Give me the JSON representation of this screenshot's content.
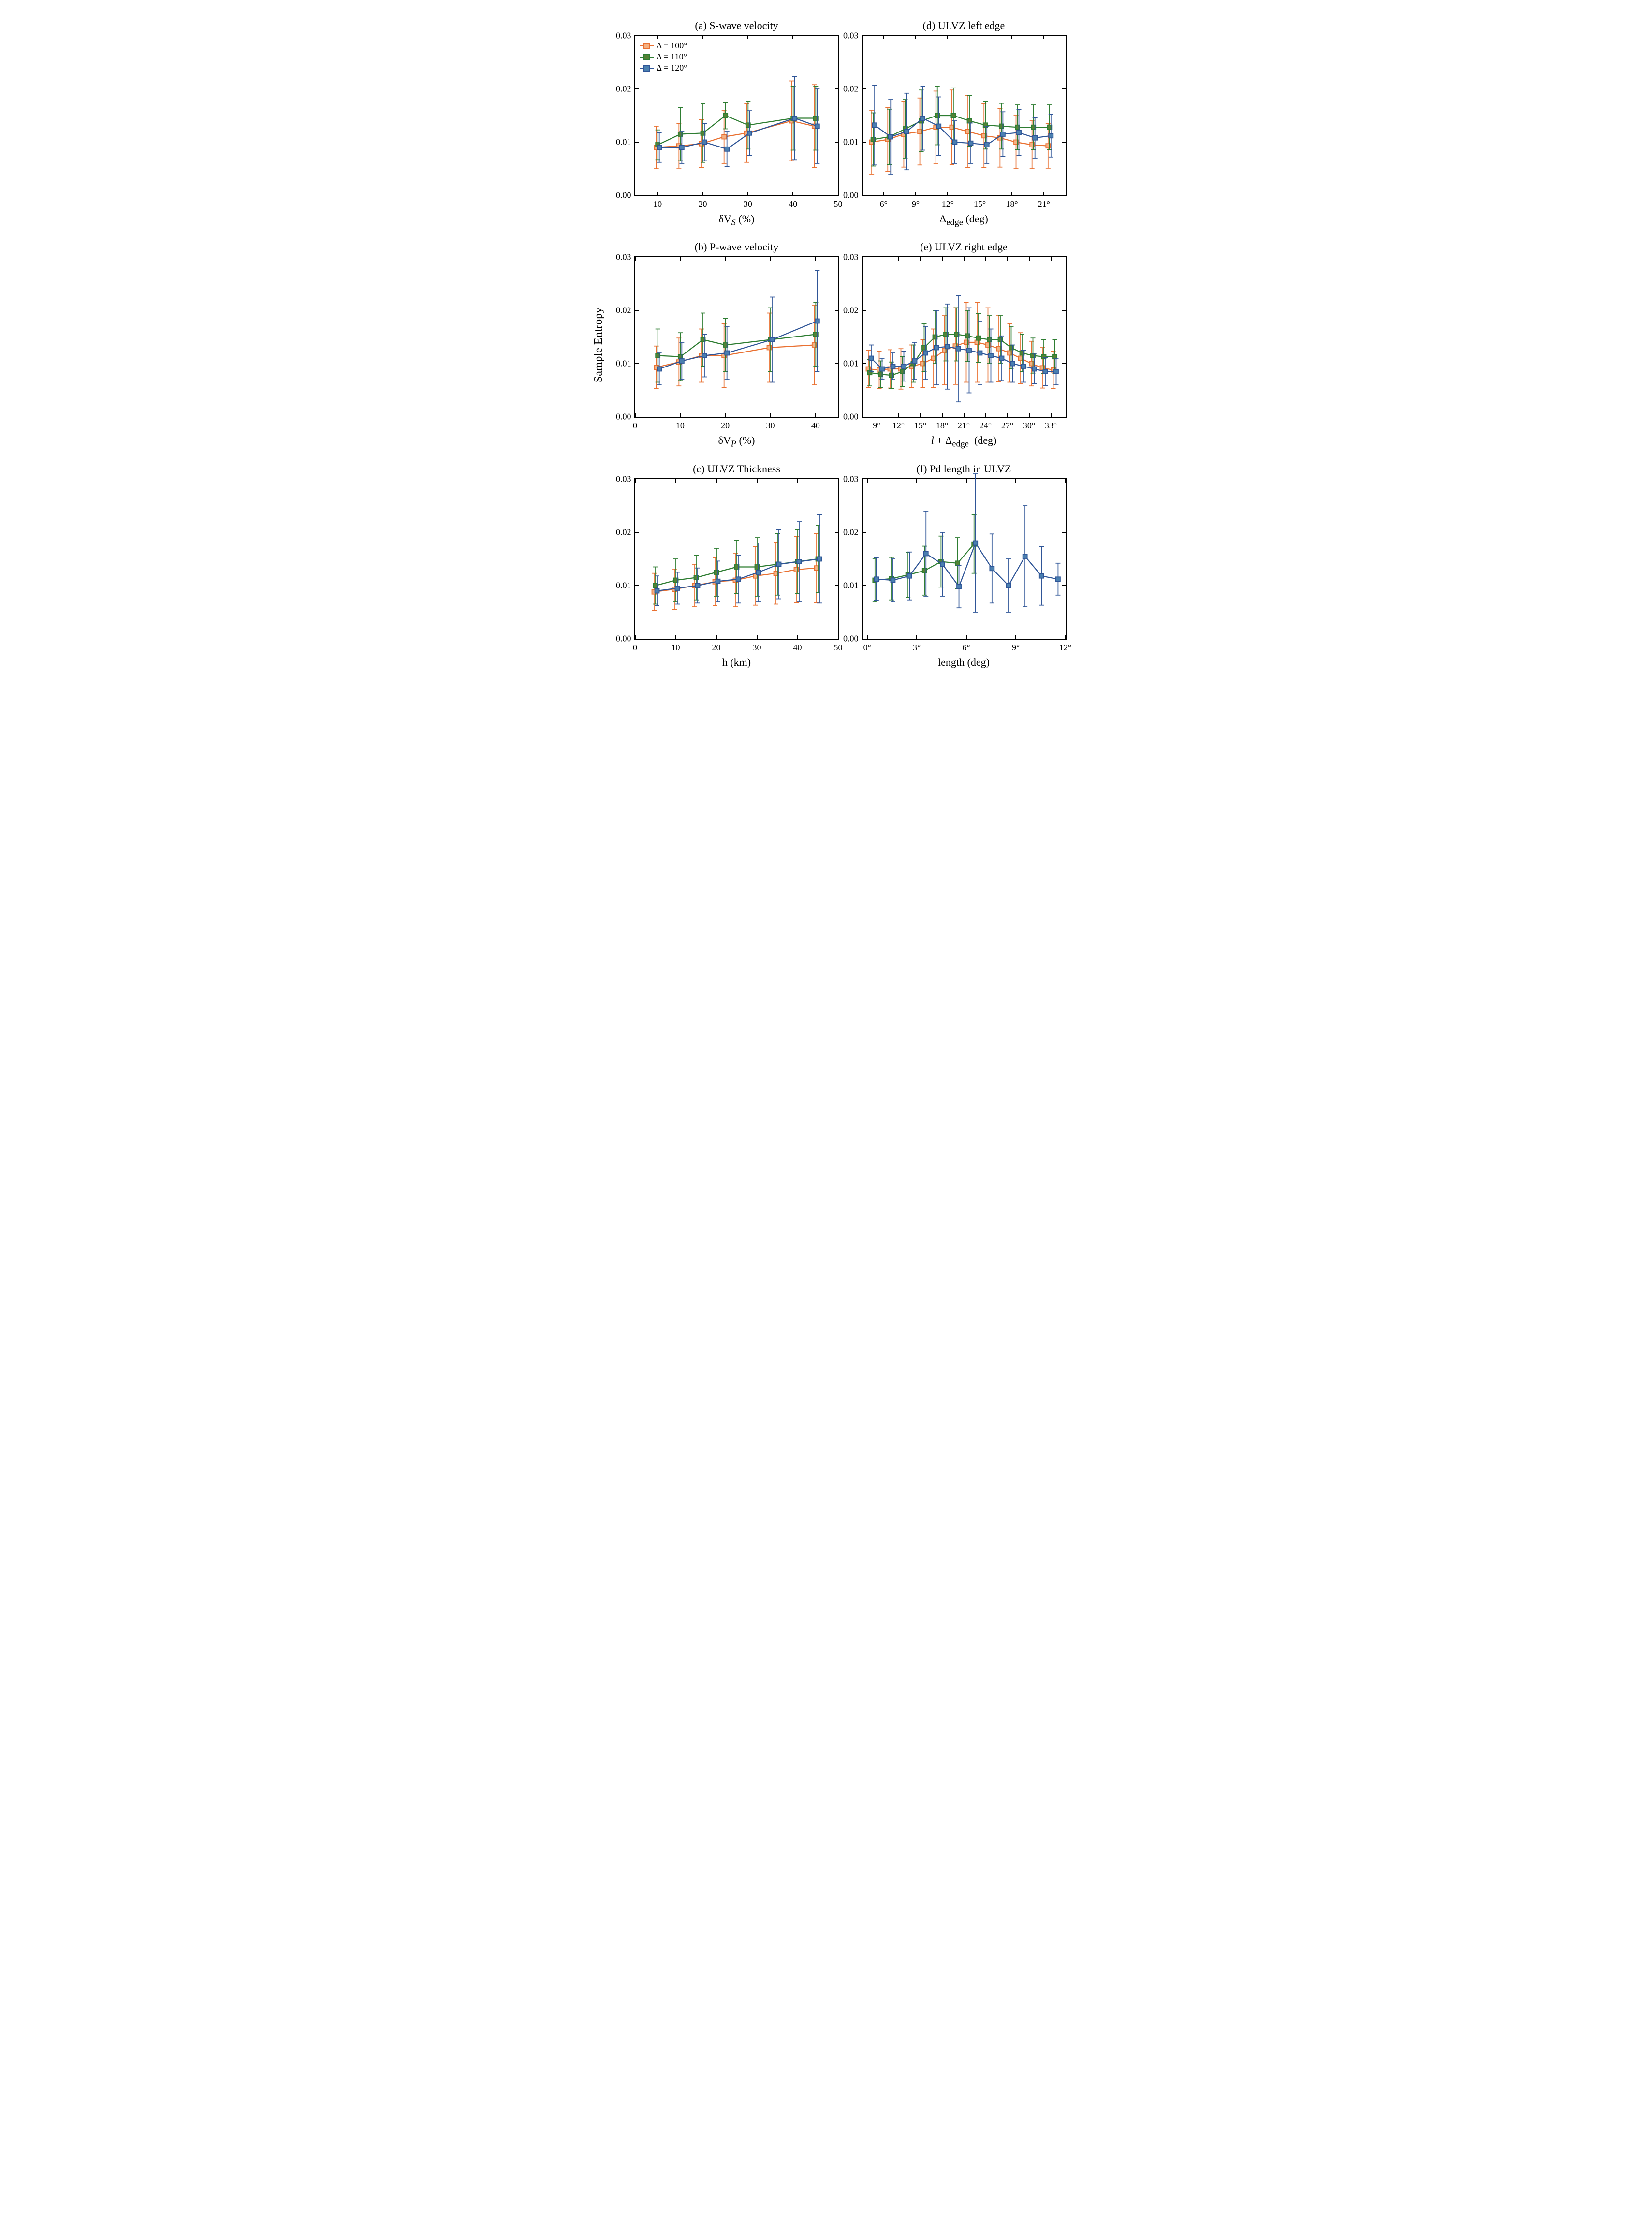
{
  "global_ylabel": "Sample Entropy",
  "colors": {
    "d100": {
      "stroke": "#e97132",
      "fill": "#f4b183"
    },
    "d110": {
      "stroke": "#2e7d32",
      "fill": "#548235"
    },
    "d120": {
      "stroke": "#2f5597",
      "fill": "#4a7fb0"
    }
  },
  "legend": {
    "items": [
      {
        "key": "d100",
        "label": "Δ = 100°"
      },
      {
        "key": "d110",
        "label": "Δ = 110°"
      },
      {
        "key": "d120",
        "label": "Δ = 120°"
      }
    ]
  },
  "style": {
    "marker_size": 9,
    "line_width": 2.2,
    "error_cap": 10,
    "title_fontsize": 22,
    "tick_fontsize": 18
  },
  "panels": [
    {
      "id": "a",
      "grid_col": 2,
      "grid_row": 1,
      "title": "(a) S-wave velocity",
      "xlabel": "δV_S (%)",
      "xlabel_html": "&delta;V<sub><i>S</i></sub> (%)",
      "ylim": [
        0,
        0.03
      ],
      "yticks": [
        0.0,
        0.01,
        0.02,
        0.03
      ],
      "xlim": [
        5,
        50
      ],
      "xticks": [
        10,
        20,
        30,
        40,
        50
      ],
      "xtick_labels": [
        "10",
        "20",
        "30",
        "40",
        "50"
      ],
      "show_legend": true,
      "series": [
        {
          "color": "d100",
          "x": [
            10,
            15,
            20,
            25,
            30,
            40,
            45
          ],
          "y": [
            0.009,
            0.0093,
            0.0097,
            0.011,
            0.0117,
            0.014,
            0.013
          ],
          "err": [
            0.004,
            0.0042,
            0.0045,
            0.005,
            0.0055,
            0.0075,
            0.0078
          ]
        },
        {
          "color": "d110",
          "x": [
            10,
            15,
            20,
            25,
            30,
            40,
            45
          ],
          "y": [
            0.0095,
            0.0115,
            0.0117,
            0.015,
            0.0132,
            0.0145,
            0.0145
          ],
          "err": [
            0.0028,
            0.005,
            0.0055,
            0.0025,
            0.0045,
            0.006,
            0.006
          ]
        },
        {
          "color": "d120",
          "x": [
            10,
            15,
            20,
            25,
            30,
            40,
            45
          ],
          "y": [
            0.009,
            0.009,
            0.01,
            0.0087,
            0.0117,
            0.0145,
            0.013
          ],
          "err": [
            0.0028,
            0.003,
            0.0035,
            0.0033,
            0.0042,
            0.0078,
            0.007
          ]
        }
      ]
    },
    {
      "id": "b",
      "grid_col": 2,
      "grid_row": 2,
      "title": "(b) P-wave velocity",
      "xlabel_html": "&delta;V<sub><i>P</i></sub> (%)",
      "ylim": [
        0,
        0.03
      ],
      "yticks": [
        0.0,
        0.01,
        0.02,
        0.03
      ],
      "xlim": [
        0,
        45
      ],
      "xticks": [
        0,
        10,
        20,
        30,
        40
      ],
      "xtick_labels": [
        "0",
        "10",
        "20",
        "30",
        "40"
      ],
      "series": [
        {
          "color": "d100",
          "x": [
            5,
            10,
            15,
            20,
            30,
            40
          ],
          "y": [
            0.0093,
            0.0103,
            0.0115,
            0.0115,
            0.013,
            0.0135
          ],
          "err": [
            0.004,
            0.0045,
            0.005,
            0.006,
            0.0065,
            0.0075
          ]
        },
        {
          "color": "d110",
          "x": [
            5,
            10,
            15,
            20,
            30,
            40
          ],
          "y": [
            0.0115,
            0.0113,
            0.0145,
            0.0135,
            0.0145,
            0.0155
          ],
          "err": [
            0.005,
            0.0045,
            0.005,
            0.005,
            0.006,
            0.006
          ]
        },
        {
          "color": "d120",
          "x": [
            5,
            10,
            15,
            20,
            30,
            40
          ],
          "y": [
            0.009,
            0.0105,
            0.0115,
            0.012,
            0.0145,
            0.018
          ],
          "err": [
            0.003,
            0.0035,
            0.004,
            0.005,
            0.008,
            0.0095
          ]
        }
      ]
    },
    {
      "id": "c",
      "grid_col": 2,
      "grid_row": 3,
      "title": "(c) ULVZ Thickness",
      "xlabel_html": "h (km)",
      "ylim": [
        0,
        0.03
      ],
      "yticks": [
        0.0,
        0.01,
        0.02,
        0.03
      ],
      "xlim": [
        0,
        50
      ],
      "xticks": [
        0,
        10,
        20,
        30,
        40,
        50
      ],
      "xtick_labels": [
        "0",
        "10",
        "20",
        "30",
        "40",
        "50"
      ],
      "series": [
        {
          "color": "d100",
          "x": [
            5,
            10,
            15,
            20,
            25,
            30,
            35,
            40,
            45
          ],
          "y": [
            0.0088,
            0.0093,
            0.01,
            0.0107,
            0.011,
            0.0118,
            0.0123,
            0.013,
            0.0133
          ],
          "err": [
            0.0035,
            0.0038,
            0.004,
            0.0045,
            0.005,
            0.0055,
            0.0058,
            0.0062,
            0.0065
          ]
        },
        {
          "color": "d110",
          "x": [
            5,
            10,
            15,
            20,
            25,
            30,
            35,
            40,
            45
          ],
          "y": [
            0.01,
            0.011,
            0.0115,
            0.0125,
            0.0135,
            0.0135,
            0.014,
            0.0145,
            0.015
          ],
          "err": [
            0.0035,
            0.004,
            0.0042,
            0.0045,
            0.005,
            0.0055,
            0.0058,
            0.006,
            0.0063
          ]
        },
        {
          "color": "d120",
          "x": [
            5,
            10,
            15,
            20,
            25,
            30,
            35,
            40,
            45
          ],
          "y": [
            0.009,
            0.0095,
            0.01,
            0.0108,
            0.0112,
            0.0125,
            0.014,
            0.0145,
            0.015
          ],
          "err": [
            0.0028,
            0.003,
            0.0033,
            0.0038,
            0.0045,
            0.0055,
            0.0065,
            0.0075,
            0.0083
          ]
        }
      ]
    },
    {
      "id": "d",
      "grid_col": 3,
      "grid_row": 1,
      "title": "(d) ULVZ left edge",
      "xlabel_html": "&Delta;<sub>edge</sub> (deg)",
      "ylim": [
        0,
        0.03
      ],
      "yticks": [
        0.0,
        0.01,
        0.02,
        0.03
      ],
      "xlim": [
        4,
        23
      ],
      "xticks": [
        6,
        9,
        12,
        15,
        18,
        21
      ],
      "xtick_labels": [
        "6°",
        "9°",
        "12°",
        "15°",
        "18°",
        "21°"
      ],
      "series": [
        {
          "color": "d100",
          "x": [
            5,
            6.5,
            8,
            9.5,
            11,
            12.5,
            14,
            15.5,
            17,
            18.5,
            20,
            21.5
          ],
          "y": [
            0.01,
            0.0105,
            0.0115,
            0.012,
            0.0128,
            0.0128,
            0.012,
            0.0112,
            0.0108,
            0.01,
            0.0095,
            0.0093
          ],
          "err": [
            0.006,
            0.006,
            0.0062,
            0.0063,
            0.0068,
            0.007,
            0.0068,
            0.006,
            0.0055,
            0.005,
            0.0045,
            0.0042
          ]
        },
        {
          "color": "d110",
          "x": [
            5,
            6.5,
            8,
            9.5,
            11,
            12.5,
            14,
            15.5,
            17,
            18.5,
            20,
            21.5
          ],
          "y": [
            0.0105,
            0.011,
            0.0125,
            0.014,
            0.015,
            0.015,
            0.014,
            0.0132,
            0.013,
            0.0128,
            0.0128,
            0.0128
          ],
          "err": [
            0.005,
            0.0052,
            0.0055,
            0.0058,
            0.0055,
            0.0052,
            0.0048,
            0.0045,
            0.0043,
            0.0042,
            0.0042,
            0.0042
          ]
        },
        {
          "color": "d120",
          "x": [
            5,
            6.5,
            8,
            9.5,
            11,
            12.5,
            14,
            15.5,
            17,
            18.5,
            20,
            21.5
          ],
          "y": [
            0.0132,
            0.011,
            0.012,
            0.0145,
            0.013,
            0.01,
            0.0098,
            0.0095,
            0.0115,
            0.0118,
            0.0108,
            0.0112
          ],
          "err": [
            0.0075,
            0.007,
            0.0072,
            0.006,
            0.0055,
            0.004,
            0.0038,
            0.0035,
            0.0042,
            0.0043,
            0.0038,
            0.004
          ]
        }
      ]
    },
    {
      "id": "e",
      "grid_col": 3,
      "grid_row": 2,
      "title": "(e) ULVZ right edge",
      "xlabel_html": "<i>l</i> + &Delta;<sub>edge</sub>&nbsp; (deg)",
      "ylim": [
        0,
        0.03
      ],
      "yticks": [
        0.0,
        0.01,
        0.02,
        0.03
      ],
      "xlim": [
        7,
        35
      ],
      "xticks": [
        9,
        12,
        15,
        18,
        21,
        24,
        27,
        30,
        33
      ],
      "xtick_labels": [
        "9°",
        "12°",
        "15°",
        "18°",
        "21°",
        "24°",
        "27°",
        "30°",
        "33°"
      ],
      "series": [
        {
          "color": "d100",
          "x": [
            8,
            9.5,
            11,
            12.5,
            14,
            15.5,
            17,
            18.5,
            20,
            21.5,
            23,
            24.5,
            26,
            27.5,
            29,
            30.5,
            32,
            33.5
          ],
          "y": [
            0.009,
            0.0088,
            0.009,
            0.009,
            0.0095,
            0.01,
            0.011,
            0.0125,
            0.0133,
            0.014,
            0.014,
            0.0135,
            0.0128,
            0.012,
            0.011,
            0.01,
            0.0092,
            0.0088
          ],
          "err": [
            0.0035,
            0.0035,
            0.0036,
            0.0038,
            0.004,
            0.0045,
            0.0055,
            0.0065,
            0.0072,
            0.0075,
            0.0075,
            0.007,
            0.0062,
            0.0055,
            0.0048,
            0.0042,
            0.0038,
            0.0035
          ]
        },
        {
          "color": "d110",
          "x": [
            8,
            9.5,
            11,
            12.5,
            14,
            15.5,
            17,
            18.5,
            20,
            21.5,
            23,
            24.5,
            26,
            27.5,
            29,
            30.5,
            32,
            33.5
          ],
          "y": [
            0.0083,
            0.008,
            0.0078,
            0.0085,
            0.01,
            0.013,
            0.015,
            0.0155,
            0.0155,
            0.0152,
            0.0148,
            0.0145,
            0.0145,
            0.013,
            0.012,
            0.0115,
            0.0113,
            0.0113
          ],
          "err": [
            0.0025,
            0.0025,
            0.0025,
            0.0028,
            0.0035,
            0.0045,
            0.005,
            0.005,
            0.005,
            0.0048,
            0.0046,
            0.0045,
            0.0045,
            0.004,
            0.0035,
            0.0033,
            0.0032,
            0.0032
          ]
        },
        {
          "color": "d120",
          "x": [
            8,
            9.5,
            11,
            12.5,
            14,
            15.5,
            17,
            18.5,
            20,
            21.5,
            23,
            24.5,
            26,
            27.5,
            29,
            30.5,
            32,
            33.5
          ],
          "y": [
            0.011,
            0.009,
            0.0095,
            0.0095,
            0.0105,
            0.012,
            0.013,
            0.0132,
            0.0128,
            0.0125,
            0.012,
            0.0115,
            0.011,
            0.01,
            0.0095,
            0.009,
            0.0085,
            0.0085
          ],
          "err": [
            0.0025,
            0.002,
            0.0025,
            0.0028,
            0.0035,
            0.005,
            0.007,
            0.008,
            0.01,
            0.008,
            0.006,
            0.005,
            0.0042,
            0.0035,
            0.003,
            0.0028,
            0.0026,
            0.0025
          ]
        }
      ]
    },
    {
      "id": "f",
      "grid_col": 3,
      "grid_row": 3,
      "title": "(f) Pd length in ULVZ",
      "xlabel_html": "length (deg)",
      "ylim": [
        0,
        0.03
      ],
      "yticks": [
        0.0,
        0.01,
        0.02,
        0.03
      ],
      "xlim": [
        -0.3,
        12
      ],
      "xticks": [
        0,
        3,
        6,
        9,
        12
      ],
      "xtick_labels": [
        "0°",
        "3°",
        "6°",
        "9°",
        "12°"
      ],
      "series": [
        {
          "color": "d110",
          "x": [
            0.5,
            1.5,
            2.5,
            3.5,
            4.5,
            5.5,
            6.5
          ],
          "y": [
            0.011,
            0.0113,
            0.012,
            0.0128,
            0.0145,
            0.0142,
            0.0178
          ],
          "err": [
            0.004,
            0.004,
            0.0042,
            0.0046,
            0.0048,
            0.0048,
            0.0055
          ]
        },
        {
          "color": "d120",
          "x": [
            0.5,
            1.5,
            2.5,
            3.5,
            4.5,
            5.5,
            6.5,
            7.5,
            8.5,
            9.5,
            10.5,
            11.5
          ],
          "y": [
            0.0112,
            0.011,
            0.0118,
            0.016,
            0.014,
            0.0098,
            0.018,
            0.0132,
            0.01,
            0.0155,
            0.0118,
            0.0112
          ],
          "err": [
            0.004,
            0.004,
            0.0045,
            0.008,
            0.006,
            0.004,
            0.013,
            0.0065,
            0.005,
            0.0095,
            0.0055,
            0.003
          ]
        }
      ]
    }
  ]
}
